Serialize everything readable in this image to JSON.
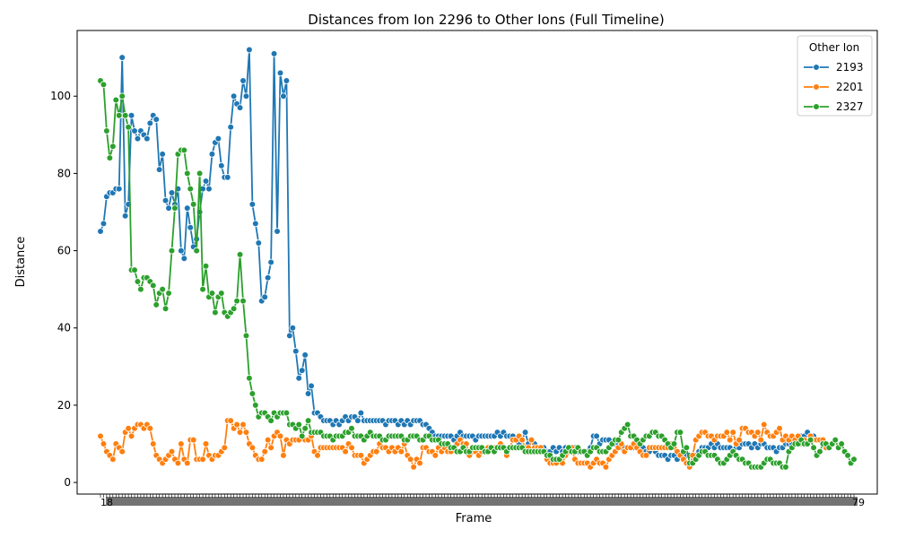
{
  "chart_data": {
    "type": "line",
    "title": "Distances from Ion 2296 to Other Ions (Full Timeline)",
    "xlabel": "Frame",
    "ylabel": "Distance",
    "ylim": [
      -3,
      117
    ],
    "yticks": [
      0,
      20,
      40,
      60,
      80,
      100
    ],
    "xtick_first_label": "18",
    "xtick_last_label": "79",
    "legend_title": "Other Ion",
    "legend_position": "top-right",
    "grid": false,
    "series": [
      {
        "name": "2193",
        "color": "#1f77b4",
        "values": [
          65,
          67,
          74,
          75,
          75,
          76,
          76,
          110,
          69,
          72,
          95,
          91,
          89,
          91,
          90,
          89,
          93,
          95,
          94,
          81,
          85,
          73,
          71,
          75,
          72,
          76,
          60,
          58,
          71,
          66,
          61,
          63,
          70,
          76,
          78,
          76,
          85,
          88,
          89,
          82,
          79,
          79,
          92,
          100,
          98,
          97,
          104,
          100,
          112,
          72,
          67,
          62,
          47,
          48,
          53,
          57,
          111,
          65,
          106,
          100,
          104,
          38,
          40,
          34,
          27,
          29,
          33,
          23,
          25,
          18,
          18,
          17,
          16,
          16,
          16,
          15,
          16,
          15,
          16,
          17,
          16,
          17,
          17,
          16,
          18,
          16,
          16,
          16,
          16,
          16,
          16,
          16,
          15,
          16,
          16,
          16,
          15,
          16,
          15,
          16,
          15,
          16,
          16,
          16,
          15,
          15,
          14,
          13,
          12,
          12,
          12,
          12,
          12,
          12,
          11,
          12,
          13,
          12,
          12,
          12,
          12,
          11,
          12,
          12,
          12,
          12,
          12,
          12,
          13,
          12,
          13,
          12,
          12,
          12,
          11,
          10,
          11,
          13,
          10,
          11,
          10,
          9,
          9,
          9,
          8,
          8,
          9,
          8,
          9,
          8,
          9,
          9,
          8,
          9,
          8,
          8,
          8,
          8,
          9,
          12,
          12,
          10,
          11,
          11,
          11,
          10,
          10,
          10,
          9,
          9,
          9,
          9,
          9,
          9,
          9,
          9,
          8,
          8,
          9,
          8,
          7,
          7,
          7,
          6,
          7,
          7,
          6,
          7,
          7,
          7,
          7,
          7,
          7,
          8,
          9,
          9,
          9,
          10,
          9,
          10,
          9,
          9,
          9,
          9,
          8,
          9,
          9,
          10,
          10,
          10,
          9,
          10,
          9,
          10,
          10,
          9,
          9,
          9,
          8,
          9,
          9,
          10,
          10,
          10,
          11,
          11,
          12,
          12,
          13,
          12,
          12,
          11
        ]
      },
      {
        "name": "2201",
        "color": "#ff7f0e",
        "values": [
          12,
          10,
          8,
          7,
          6,
          10,
          9,
          8,
          13,
          14,
          12,
          14,
          15,
          15,
          14,
          15,
          14,
          10,
          7,
          6,
          5,
          6,
          7,
          8,
          6,
          5,
          10,
          6,
          5,
          11,
          11,
          6,
          6,
          6,
          10,
          7,
          6,
          7,
          7,
          8,
          9,
          16,
          16,
          14,
          15,
          13,
          15,
          13,
          10,
          9,
          7,
          6,
          6,
          8,
          11,
          9,
          12,
          13,
          12,
          7,
          11,
          10,
          11,
          11,
          11,
          12,
          11,
          11,
          12,
          8,
          7,
          9,
          9,
          9,
          9,
          9,
          9,
          9,
          9,
          8,
          10,
          9,
          7,
          7,
          7,
          5,
          6,
          7,
          8,
          8,
          10,
          9,
          9,
          8,
          9,
          8,
          9,
          8,
          10,
          7,
          6,
          4,
          6,
          5,
          9,
          9,
          8,
          8,
          7,
          9,
          8,
          9,
          8,
          8,
          9,
          10,
          11,
          10,
          10,
          7,
          8,
          8,
          7,
          8,
          8,
          9,
          9,
          9,
          9,
          10,
          9,
          7,
          9,
          11,
          11,
          12,
          11,
          9,
          9,
          11,
          9,
          9,
          9,
          8,
          6,
          5,
          5,
          5,
          6,
          5,
          7,
          8,
          9,
          6,
          5,
          5,
          5,
          5,
          4,
          5,
          6,
          5,
          5,
          4,
          6,
          7,
          8,
          9,
          10,
          8,
          9,
          9,
          10,
          9,
          8,
          7,
          7,
          9,
          9,
          9,
          9,
          9,
          9,
          9,
          10,
          9,
          8,
          7,
          6,
          5,
          4,
          7,
          11,
          12,
          13,
          13,
          12,
          12,
          11,
          12,
          12,
          12,
          13,
          11,
          13,
          10,
          11,
          14,
          14,
          13,
          13,
          12,
          13,
          11,
          15,
          13,
          12,
          12,
          13,
          14,
          11,
          12,
          11,
          12,
          11,
          12,
          10,
          11,
          10,
          12,
          11,
          11,
          11,
          11,
          9
        ]
      },
      {
        "name": "2327",
        "color": "#2ca02c",
        "values": [
          104,
          103,
          91,
          84,
          87,
          99,
          95,
          100,
          95,
          92,
          55,
          55,
          52,
          50,
          53,
          53,
          52,
          51,
          46,
          49,
          50,
          45,
          49,
          60,
          71,
          85,
          86,
          86,
          80,
          76,
          72,
          60,
          80,
          50,
          56,
          48,
          49,
          44,
          48,
          49,
          44,
          43,
          44,
          45,
          47,
          59,
          47,
          38,
          27,
          23,
          20,
          17,
          18,
          18,
          17,
          16,
          18,
          17,
          18,
          18,
          18,
          15,
          15,
          14,
          15,
          12,
          14,
          16,
          13,
          13,
          13,
          13,
          12,
          12,
          12,
          11,
          12,
          12,
          12,
          13,
          13,
          14,
          12,
          12,
          12,
          11,
          12,
          13,
          12,
          12,
          12,
          11,
          11,
          12,
          12,
          12,
          12,
          12,
          11,
          11,
          12,
          12,
          12,
          11,
          11,
          12,
          12,
          11,
          11,
          11,
          10,
          10,
          10,
          9,
          9,
          8,
          8,
          9,
          8,
          8,
          9,
          9,
          9,
          9,
          8,
          8,
          9,
          8,
          9,
          9,
          9,
          8,
          9,
          9,
          9,
          9,
          9,
          8,
          8,
          8,
          8,
          8,
          8,
          8,
          7,
          7,
          6,
          6,
          6,
          7,
          8,
          9,
          8,
          8,
          9,
          8,
          8,
          7,
          8,
          9,
          9,
          8,
          8,
          8,
          9,
          10,
          11,
          11,
          13,
          14,
          15,
          12,
          12,
          11,
          10,
          11,
          12,
          12,
          13,
          13,
          12,
          12,
          11,
          10,
          9,
          10,
          13,
          13,
          8,
          9,
          5,
          5,
          6,
          7,
          8,
          8,
          7,
          7,
          7,
          6,
          5,
          5,
          6,
          7,
          8,
          7,
          6,
          6,
          5,
          5,
          4,
          4,
          4,
          4,
          5,
          6,
          6,
          5,
          5,
          5,
          4,
          4,
          8,
          9,
          10,
          10,
          11,
          10,
          10,
          11,
          9,
          7,
          8,
          10,
          10,
          9,
          10,
          11,
          9,
          10,
          8,
          7,
          5,
          6
        ]
      }
    ]
  }
}
